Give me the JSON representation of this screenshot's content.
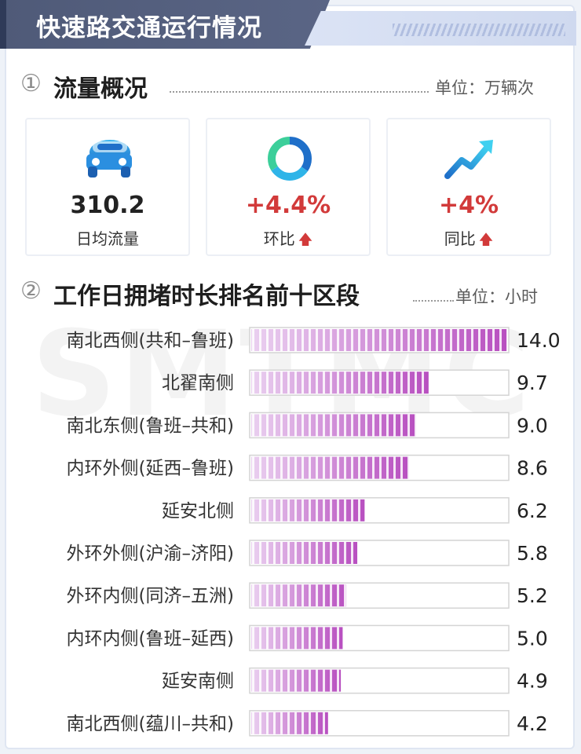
{
  "header": {
    "title": "快速路交通运行情况"
  },
  "section1": {
    "number": "①",
    "title": "流量概况",
    "unit": "单位：万辆次",
    "kpis": [
      {
        "value": "310.2",
        "label": "日均流量",
        "icon": "car-icon"
      },
      {
        "value": "+4.4%",
        "label": "环比",
        "icon": "donut-icon",
        "trend": "up-arrow-icon"
      },
      {
        "value": "+4%",
        "label": "同比",
        "icon": "trend-up-icon",
        "trend": "up-arrow-icon"
      }
    ]
  },
  "section2": {
    "number": "②",
    "title": "工作日拥堵时长排名前十区段",
    "unit": "单位：小时"
  },
  "colors": {
    "bar_start": "#ead0f0",
    "bar_end": "#b84fc0",
    "accent_red": "#d23a3a",
    "header_bg": "#545f7e"
  },
  "chart_data": {
    "type": "bar",
    "orientation": "horizontal",
    "title": "工作日拥堵时长排名前十区段",
    "unit": "单位：小时",
    "categories": [
      "南北西侧(共和–鲁班)",
      "北翟南侧",
      "南北东侧(鲁班–共和)",
      "内环外侧(延西–鲁班)",
      "延安北侧",
      "外环外侧(沪渝–济阳)",
      "外环内侧(同济–五洲)",
      "内环内侧(鲁班–延西)",
      "延安南侧",
      "南北西侧(蕴川–共和)"
    ],
    "values": [
      14.0,
      9.7,
      9.0,
      8.6,
      6.2,
      5.8,
      5.2,
      5.0,
      4.9,
      4.2
    ],
    "value_labels": [
      "14.0",
      "9.7",
      "9.0",
      "8.6",
      "6.2",
      "5.8",
      "5.2",
      "5.0",
      "4.9",
      "4.2"
    ],
    "xlim": [
      0,
      14
    ]
  }
}
